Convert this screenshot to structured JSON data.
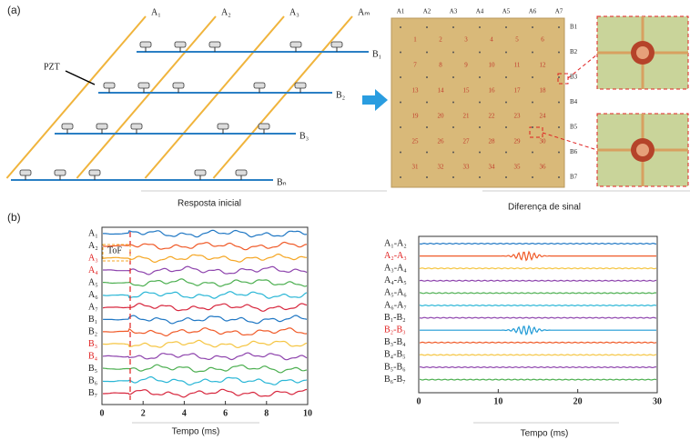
{
  "panel_a": {
    "label": "(a)",
    "pzt_label": "PZT",
    "a_labels": [
      "A₁",
      "A₂",
      "A₃",
      "Aₘ"
    ],
    "b_labels": [
      "B₁",
      "B₂",
      "B₃",
      "Bₙ"
    ],
    "plate_columns": [
      "A1",
      "A2",
      "A3",
      "A4",
      "A5",
      "A6",
      "A7"
    ],
    "plate_rows": [
      "B1",
      "B2",
      "B3",
      "B4",
      "B5",
      "B6",
      "B7"
    ],
    "plate_cells": [
      "1",
      "2",
      "3",
      "4",
      "5",
      "6",
      "7",
      "8",
      "9",
      "10",
      "11",
      "12",
      "13",
      "14",
      "15",
      "16",
      "17",
      "18",
      "19",
      "20",
      "21",
      "22",
      "23",
      "24",
      "25",
      "26",
      "27",
      "28",
      "29",
      "30",
      "31",
      "32",
      "33",
      "34",
      "35",
      "36"
    ],
    "caption_left": "Resposta inicial",
    "caption_right": "Diferença de sinal"
  },
  "panel_b": {
    "label": "(b)",
    "left_plot": {
      "tof_label": "ToF",
      "xlim": [
        0,
        10
      ],
      "xticks": [
        0,
        2,
        4,
        6,
        8,
        10
      ],
      "xlabel": "Tempo (ms)",
      "traces": [
        {
          "name": "A₁",
          "color": "#1f77c4",
          "highlight": false
        },
        {
          "name": "A₂",
          "color": "#f05a28",
          "highlight": false
        },
        {
          "name": "A₃",
          "color": "#f5a623",
          "highlight": true
        },
        {
          "name": "A₄",
          "color": "#8e44ad",
          "highlight": true
        },
        {
          "name": "A₅",
          "color": "#4caf50",
          "highlight": false
        },
        {
          "name": "A₆",
          "color": "#29b6d6",
          "highlight": false
        },
        {
          "name": "A₇",
          "color": "#d7263d",
          "highlight": false
        },
        {
          "name": "B₁",
          "color": "#1f77c4",
          "highlight": false
        },
        {
          "name": "B₂",
          "color": "#f05a28",
          "highlight": false
        },
        {
          "name": "B₃",
          "color": "#f5c542",
          "highlight": true
        },
        {
          "name": "B₄",
          "color": "#8e44ad",
          "highlight": true
        },
        {
          "name": "B₅",
          "color": "#4caf50",
          "highlight": false
        },
        {
          "name": "B₆",
          "color": "#29b6d6",
          "highlight": false
        },
        {
          "name": "B₇",
          "color": "#d7263d",
          "highlight": false
        }
      ]
    },
    "right_plot": {
      "xlim": [
        0,
        30
      ],
      "xticks": [
        0,
        10,
        20,
        30
      ],
      "xlabel": "Tempo (ms)",
      "traces": [
        {
          "name": "A₁-A₂",
          "color": "#1f77c4",
          "highlight": false,
          "burst": false
        },
        {
          "name": "A₂-A₃",
          "color": "#f05a28",
          "highlight": true,
          "burst": true
        },
        {
          "name": "A₃-A₄",
          "color": "#f5c542",
          "highlight": false,
          "burst": false
        },
        {
          "name": "A₄-A₅",
          "color": "#8e44ad",
          "highlight": false,
          "burst": false
        },
        {
          "name": "A₅-A₆",
          "color": "#4caf50",
          "highlight": false,
          "burst": false
        },
        {
          "name": "A₆-A₇",
          "color": "#29b6d6",
          "highlight": false,
          "burst": false
        },
        {
          "name": "B₁-B₂",
          "color": "#8e44ad",
          "highlight": false,
          "burst": false
        },
        {
          "name": "B₂-B₃",
          "color": "#1f9ad6",
          "highlight": true,
          "burst": true
        },
        {
          "name": "B₃-B₄",
          "color": "#f05a28",
          "highlight": false,
          "burst": false
        },
        {
          "name": "B₄-B₅",
          "color": "#f5c542",
          "highlight": false,
          "burst": false
        },
        {
          "name": "B₅-B₆",
          "color": "#8e44ad",
          "highlight": false,
          "burst": false
        },
        {
          "name": "B₆-B₇",
          "color": "#4caf50",
          "highlight": false,
          "burst": false
        }
      ]
    }
  }
}
